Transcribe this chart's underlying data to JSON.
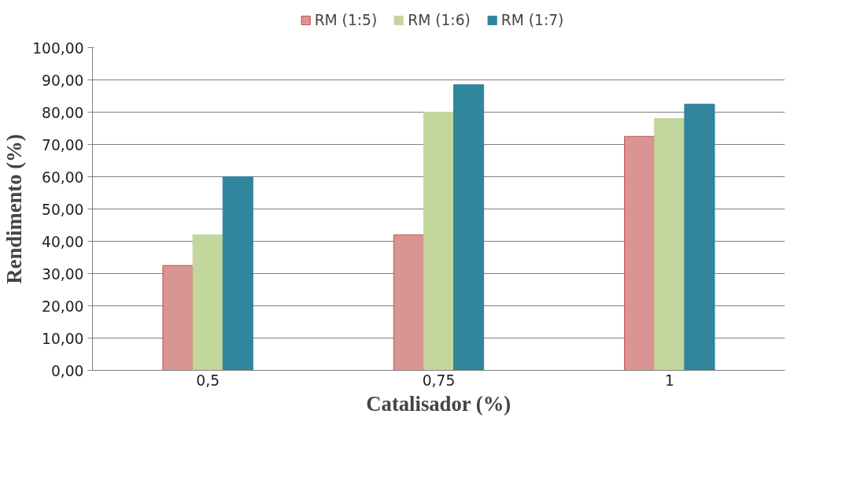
{
  "chart_data": {
    "type": "bar",
    "xlabel": "Catalisador (%)",
    "ylabel": "Rendimento (%)",
    "categories": [
      "0,5",
      "0,75",
      "1"
    ],
    "series": [
      {
        "name": "RM (1:5)",
        "color": "#d99594",
        "values": [
          32.5,
          42,
          72.5
        ]
      },
      {
        "name": "RM (1:6)",
        "color": "#c3d69b",
        "values": [
          42,
          80,
          78
        ]
      },
      {
        "name": "RM (1:7)",
        "color": "#31859c",
        "values": [
          60,
          88.5,
          82.5
        ]
      }
    ],
    "ylim": [
      0,
      100
    ],
    "yticks": [
      {
        "value": 0,
        "label": "0,00"
      },
      {
        "value": 10,
        "label": "10,00"
      },
      {
        "value": 20,
        "label": "20,00"
      },
      {
        "value": 30,
        "label": "30,00"
      },
      {
        "value": 40,
        "label": "40,00"
      },
      {
        "value": 50,
        "label": "50,00"
      },
      {
        "value": 60,
        "label": "60,00"
      },
      {
        "value": 70,
        "label": "70,00"
      },
      {
        "value": 80,
        "label": "80,00"
      },
      {
        "value": 90,
        "label": "90,00"
      },
      {
        "value": 100,
        "label": "100,00"
      }
    ],
    "grid": "y",
    "legend": "top"
  }
}
